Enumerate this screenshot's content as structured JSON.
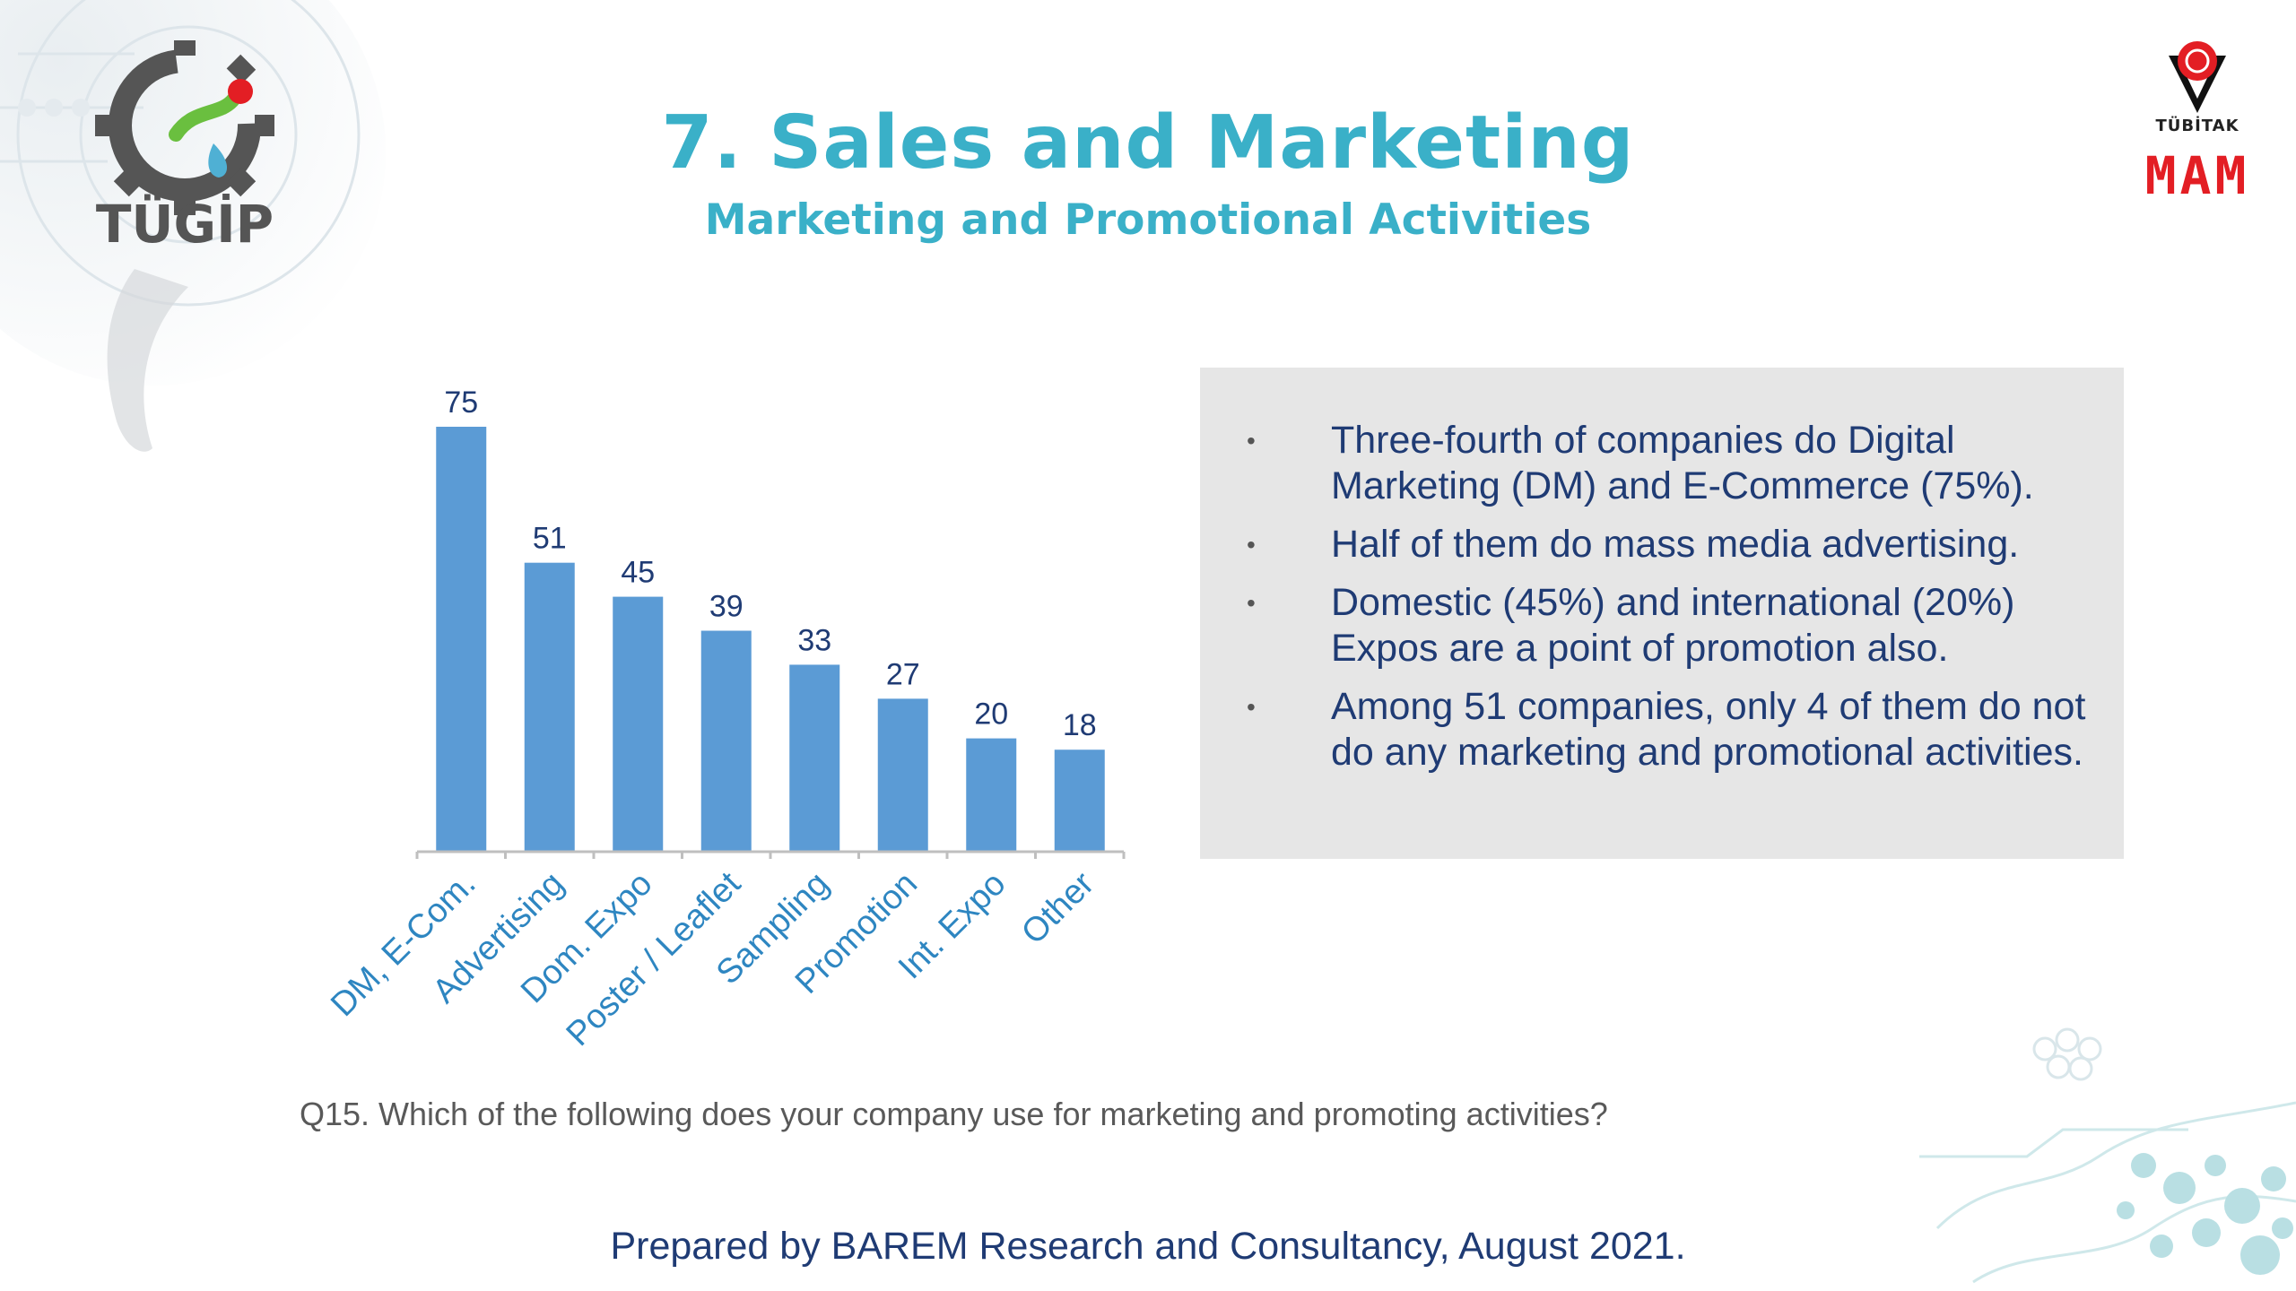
{
  "brand": {
    "left_logo_text": "TÜGİP",
    "right_logo_small": "TÜBİTAK",
    "right_logo_text": "MAM"
  },
  "header": {
    "title": "7. Sales and Marketing",
    "subtitle": "Marketing and Promotional Activities"
  },
  "chart_data": {
    "type": "bar",
    "categories": [
      "DM, E-Com.",
      "Advertising",
      "Dom. Expo",
      "Poster / Leaflet",
      "Sampling",
      "Promotion",
      "Int. Expo",
      "Other"
    ],
    "values": [
      75,
      51,
      45,
      39,
      33,
      27,
      20,
      18
    ],
    "title": "",
    "xlabel": "",
    "ylabel": "",
    "ylim": [
      0,
      75
    ],
    "grid": false,
    "legend": "none",
    "bar_color": "#5b9bd5",
    "label_color": "#1f3b74",
    "category_label_color": "#2e86c1"
  },
  "summary": {
    "bullets": [
      "Three-fourth of companies do Digital Marketing  (DM) and E-Commerce (75%).",
      "Half of them do mass media advertising.",
      "Domestic (45%) and international (20%) Expos are a point of promotion also.",
      "Among 51 companies, only 4 of them do not do any marketing and promotional activities."
    ],
    "bullet_symbol": "•"
  },
  "question": "Q15. Which of the following does your company use for marketing and promoting activities?",
  "footer": "Prepared by BAREM Research and Consultancy, August 2021.",
  "colors": {
    "title": "#3ab0c8",
    "text": "#1f3b74",
    "mam_red": "#e31e24",
    "box_bg": "#e6e6e6"
  }
}
